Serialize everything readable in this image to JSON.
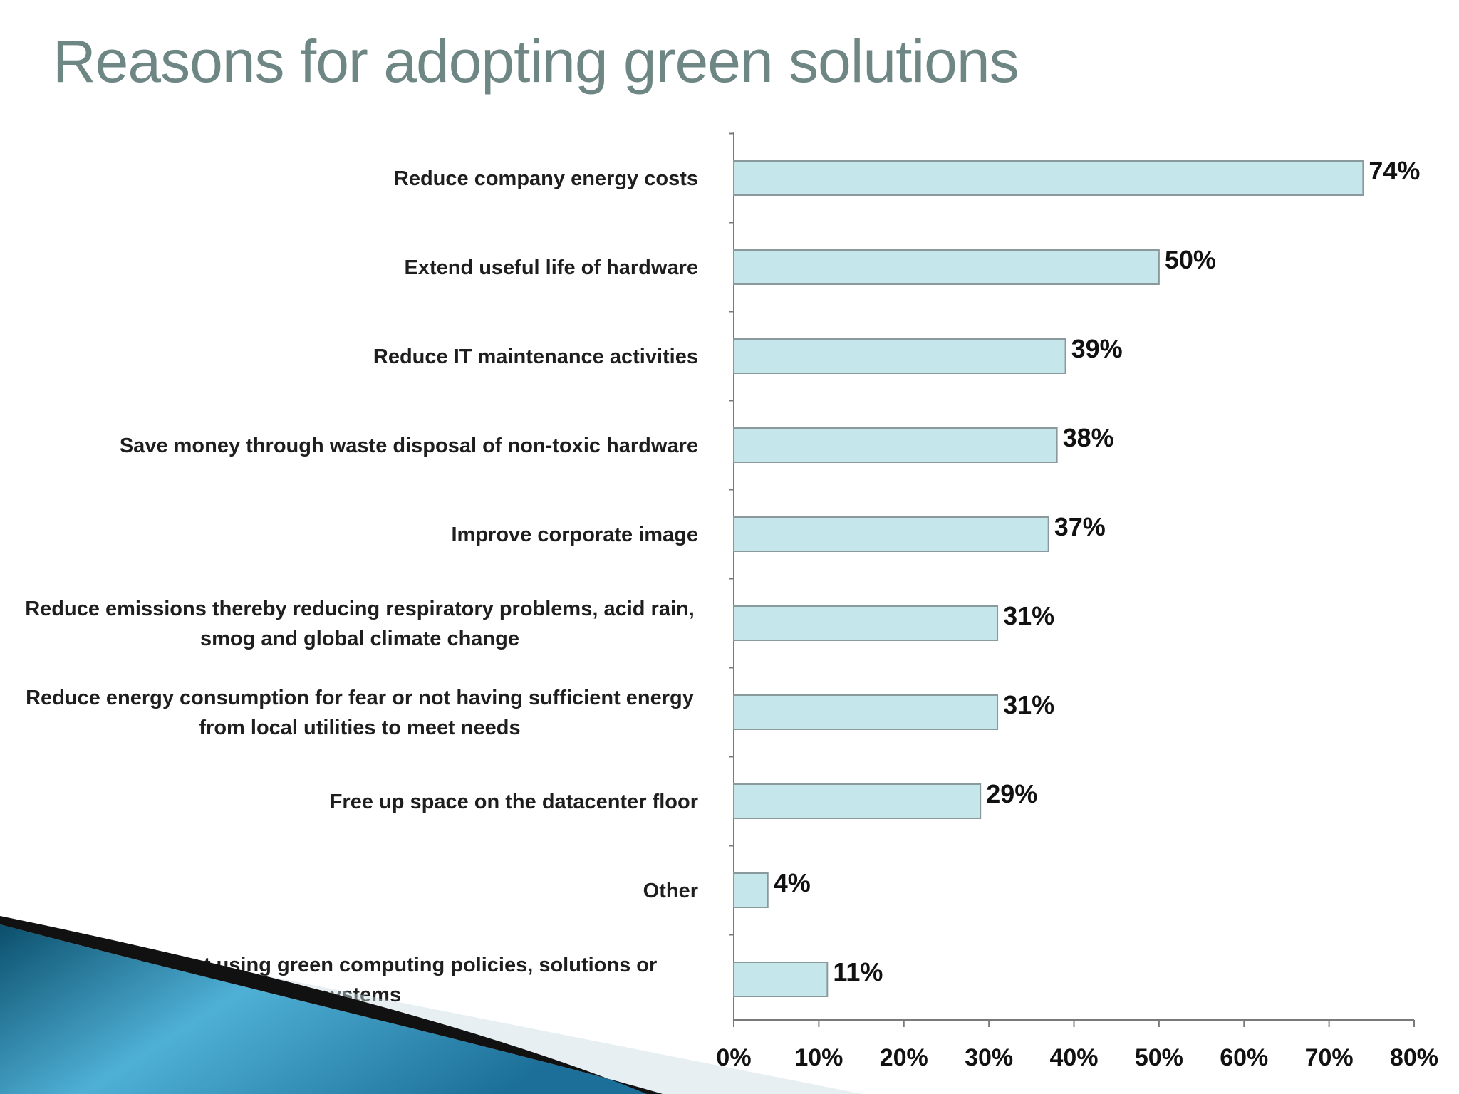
{
  "slide": {
    "title": "Reasons for adopting green solutions"
  },
  "chart_data": {
    "type": "bar",
    "orientation": "horizontal",
    "title": "Reasons for adopting green solutions",
    "categories": [
      [
        "Reduce company energy costs"
      ],
      [
        "Extend useful life of hardware"
      ],
      [
        "Reduce IT maintenance activities"
      ],
      [
        "Save money through waste disposal of non-toxic hardware"
      ],
      [
        "Improve corporate image"
      ],
      [
        "Reduce emissions thereby reducing respiratory problems, acid rain,",
        "smog and global climate change"
      ],
      [
        "Reduce energy consumption for fear or not having sufficient energy",
        "from local utilities to meet needs"
      ],
      [
        "Free up space on the datacenter floor"
      ],
      [
        "Other"
      ],
      [
        "f the above-not using green computing policies, solutions or",
        "systems"
      ]
    ],
    "values": [
      74,
      50,
      39,
      38,
      37,
      31,
      31,
      29,
      4,
      11
    ],
    "value_labels": [
      "74%",
      "50%",
      "39%",
      "38%",
      "37%",
      "31%",
      "31%",
      "29%",
      "4%",
      "11%"
    ],
    "xlim": [
      0,
      80
    ],
    "xticks": [
      "0%",
      "10%",
      "20%",
      "30%",
      "40%",
      "50%",
      "60%",
      "70%",
      "80%"
    ],
    "grid": false,
    "legend": "none",
    "colors": {
      "bar_fill": "#c5e6ea",
      "bar_stroke": "#8a9a9c",
      "axis": "#7a7a7a",
      "title": "#6e8784"
    }
  }
}
